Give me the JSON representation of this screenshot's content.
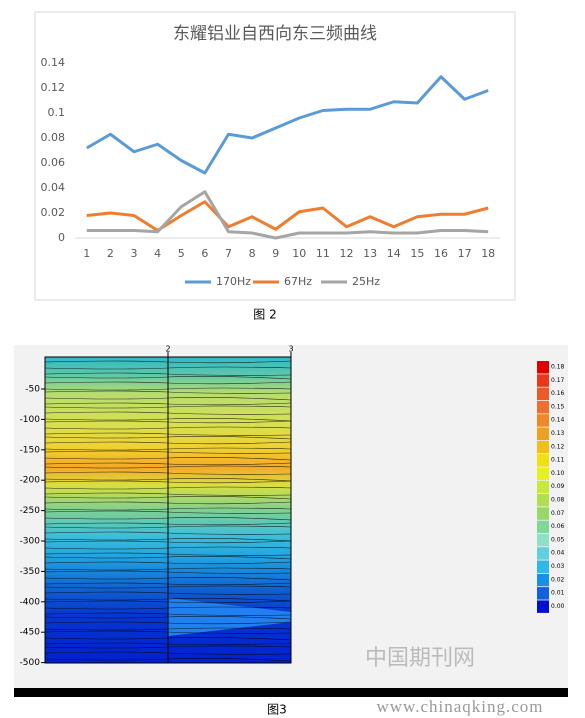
{
  "chart_data": {
    "type": "line",
    "title": "东耀铝业自西向东三频曲线",
    "categories": [
      "1",
      "2",
      "3",
      "4",
      "5",
      "6",
      "7",
      "8",
      "9",
      "10",
      "11",
      "12",
      "13",
      "14",
      "15",
      "16",
      "17",
      "18"
    ],
    "series": [
      {
        "name": "170Hz",
        "color": "#5b9bd5",
        "values": [
          0.072,
          0.083,
          0.069,
          0.075,
          0.062,
          0.052,
          0.083,
          0.08,
          0.088,
          0.096,
          0.102,
          0.103,
          0.103,
          0.109,
          0.108,
          0.129,
          0.111,
          0.118
        ]
      },
      {
        "name": "67Hz",
        "color": "#ed7d31",
        "values": [
          0.018,
          0.02,
          0.018,
          0.006,
          0.018,
          0.029,
          0.009,
          0.017,
          0.007,
          0.021,
          0.024,
          0.009,
          0.017,
          0.009,
          0.017,
          0.019,
          0.019,
          0.024
        ]
      },
      {
        "name": "25Hz",
        "color": "#a5a5a5",
        "values": [
          0.006,
          0.006,
          0.006,
          0.005,
          0.025,
          0.037,
          0.005,
          0.004,
          0.0,
          0.004,
          0.004,
          0.004,
          0.005,
          0.004,
          0.004,
          0.006,
          0.006,
          0.005
        ]
      }
    ],
    "ylim": [
      0,
      0.14
    ],
    "yticks": [
      0,
      0.02,
      0.04,
      0.06,
      0.08,
      0.1,
      0.12,
      0.14
    ],
    "grid": false,
    "legend": "bottom"
  },
  "figure2_caption": "图 2",
  "figure3": {
    "x_labels": [
      "2",
      "3"
    ],
    "y_labels": [
      "-50",
      "-100",
      "-150",
      "-200",
      "-250",
      "-300",
      "-350",
      "-400",
      "-450",
      "-500"
    ],
    "colorbar_labels": [
      "0.18",
      "0.17",
      "0.16",
      "0.15",
      "0.14",
      "0.13",
      "0.12",
      "0.11",
      "0.10",
      "0.09",
      "0.08",
      "0.07",
      "0.06",
      "0.05",
      "0.04",
      "0.03",
      "0.02",
      "0.01",
      "0.00"
    ],
    "watermark": "中国期刊网",
    "url": "www.chinaqking.com",
    "caption": "图3"
  }
}
